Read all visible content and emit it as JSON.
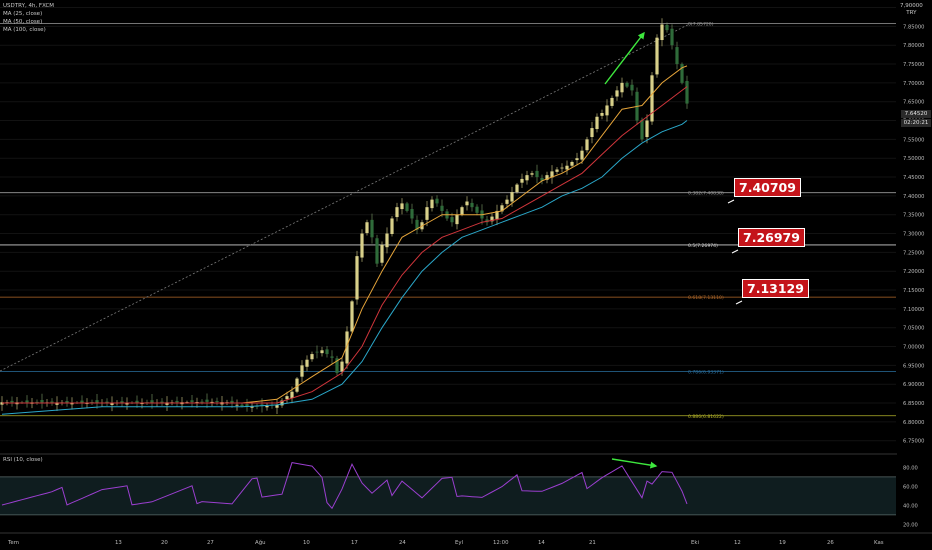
{
  "legend": {
    "symbol": "USDTRY, 4h, FXCM",
    "ma1": "MA (25, close)",
    "ma2": "MA (50, close)",
    "ma3": "MA (100, close)"
  },
  "rsi_legend": "RSI (10, close)",
  "currency_top": "7,90000",
  "currency_unit": "TRY",
  "last_price": "7.64520",
  "countdown": "02:20:21",
  "callouts": [
    "7.40709",
    "7.26979",
    "7.13129"
  ],
  "colors": {
    "up": "#d8d08a",
    "down": "#2f6b3a",
    "ma25": "#e6a53a",
    "ma50": "#d0353b",
    "ma100": "#2aa7c9",
    "rsi": "#9b3fd0",
    "arrow": "#3ee83e",
    "callout": "#c4141a"
  },
  "chart_data": {
    "type": "candlestick",
    "symbol": "USDTRY",
    "timeframe": "4h",
    "source": "FXCM",
    "ylim": [
      6.72,
      7.92
    ],
    "y_ticks": [
      "7.90000",
      "7.85000",
      "7.80000",
      "7.75000",
      "7.70000",
      "7.65000",
      "7.60000",
      "7.55000",
      "7.50000",
      "7.45000",
      "7.40000",
      "7.35000",
      "7.30000",
      "7.25000",
      "7.20000",
      "7.15000",
      "7.10000",
      "7.05000",
      "7.00000",
      "6.95000",
      "6.90000",
      "6.85000",
      "6.80000",
      "6.75000"
    ],
    "x_ticks": [
      "Tem",
      "13",
      "20",
      "27",
      "Ağu",
      "10",
      "17",
      "24",
      "Eyl",
      "12:00",
      "14",
      "21",
      "Eki",
      "12",
      "19",
      "26",
      "Kas"
    ],
    "close_path": [
      [
        0,
        6.852
      ],
      [
        28,
        6.851
      ],
      [
        42,
        6.853
      ],
      [
        45,
        6.852
      ],
      [
        48,
        6.842
      ],
      [
        51,
        6.84
      ],
      [
        55,
        6.845
      ],
      [
        58,
        6.88
      ],
      [
        60,
        6.95
      ],
      [
        62,
        6.98
      ],
      [
        64,
        6.99
      ],
      [
        66,
        6.97
      ],
      [
        67,
        6.93
      ],
      [
        68,
        6.96
      ],
      [
        69,
        7.04
      ],
      [
        70,
        7.12
      ],
      [
        71,
        7.24
      ],
      [
        72,
        7.3
      ],
      [
        73,
        7.33
      ],
      [
        74,
        7.29
      ],
      [
        75,
        7.22
      ],
      [
        76,
        7.27
      ],
      [
        77,
        7.3
      ],
      [
        78,
        7.34
      ],
      [
        79,
        7.37
      ],
      [
        80,
        7.38
      ],
      [
        81,
        7.36
      ],
      [
        82,
        7.34
      ],
      [
        83,
        7.31
      ],
      [
        84,
        7.33
      ],
      [
        85,
        7.37
      ],
      [
        86,
        7.39
      ],
      [
        87,
        7.38
      ],
      [
        88,
        7.36
      ],
      [
        89,
        7.34
      ],
      [
        90,
        7.33
      ],
      [
        91,
        7.35
      ],
      [
        92,
        7.37
      ],
      [
        93,
        7.385
      ],
      [
        94,
        7.37
      ],
      [
        95,
        7.355
      ],
      [
        96,
        7.34
      ],
      [
        97,
        7.33
      ],
      [
        98,
        7.345
      ],
      [
        99,
        7.36
      ],
      [
        100,
        7.375
      ],
      [
        101,
        7.39
      ],
      [
        102,
        7.41
      ],
      [
        103,
        7.43
      ],
      [
        104,
        7.445
      ],
      [
        105,
        7.455
      ],
      [
        106,
        7.46
      ],
      [
        107,
        7.45
      ],
      [
        108,
        7.44
      ],
      [
        109,
        7.455
      ],
      [
        110,
        7.465
      ],
      [
        111,
        7.47
      ],
      [
        112,
        7.475
      ],
      [
        113,
        7.48
      ],
      [
        114,
        7.49
      ],
      [
        115,
        7.5
      ],
      [
        116,
        7.52
      ],
      [
        117,
        7.55
      ],
      [
        118,
        7.58
      ],
      [
        119,
        7.61
      ],
      [
        120,
        7.62
      ],
      [
        121,
        7.64
      ],
      [
        122,
        7.66
      ],
      [
        123,
        7.68
      ],
      [
        124,
        7.7
      ],
      [
        125,
        7.69
      ],
      [
        126,
        7.68
      ],
      [
        127,
        7.6
      ],
      [
        128,
        7.55
      ],
      [
        129,
        7.6
      ],
      [
        130,
        7.72
      ],
      [
        131,
        7.82
      ],
      [
        132,
        7.855
      ],
      [
        133,
        7.84
      ],
      [
        134,
        7.8
      ],
      [
        135,
        7.75
      ],
      [
        136,
        7.7
      ],
      [
        137,
        7.645
      ]
    ],
    "moving_averages": [
      {
        "name": "MA (25, close)",
        "values": [
          [
            0,
            6.85
          ],
          [
            48,
            6.85
          ],
          [
            55,
            6.86
          ],
          [
            62,
            6.92
          ],
          [
            68,
            6.97
          ],
          [
            72,
            7.1
          ],
          [
            76,
            7.2
          ],
          [
            80,
            7.29
          ],
          [
            84,
            7.32
          ],
          [
            88,
            7.35
          ],
          [
            92,
            7.35
          ],
          [
            96,
            7.35
          ],
          [
            100,
            7.36
          ],
          [
            104,
            7.4
          ],
          [
            108,
            7.44
          ],
          [
            112,
            7.46
          ],
          [
            116,
            7.49
          ],
          [
            120,
            7.56
          ],
          [
            124,
            7.63
          ],
          [
            128,
            7.64
          ],
          [
            132,
            7.7
          ],
          [
            136,
            7.74
          ],
          [
            137,
            7.745
          ]
        ]
      },
      {
        "name": "MA (50, close)",
        "values": [
          [
            0,
            6.85
          ],
          [
            48,
            6.85
          ],
          [
            55,
            6.85
          ],
          [
            62,
            6.88
          ],
          [
            68,
            6.93
          ],
          [
            72,
            7.0
          ],
          [
            76,
            7.11
          ],
          [
            80,
            7.19
          ],
          [
            84,
            7.25
          ],
          [
            88,
            7.29
          ],
          [
            92,
            7.31
          ],
          [
            96,
            7.33
          ],
          [
            100,
            7.34
          ],
          [
            104,
            7.37
          ],
          [
            108,
            7.4
          ],
          [
            112,
            7.43
          ],
          [
            116,
            7.46
          ],
          [
            120,
            7.51
          ],
          [
            124,
            7.56
          ],
          [
            128,
            7.6
          ],
          [
            132,
            7.64
          ],
          [
            136,
            7.68
          ],
          [
            137,
            7.69
          ]
        ]
      },
      {
        "name": "MA (100, close)",
        "values": [
          [
            0,
            6.82
          ],
          [
            20,
            6.84
          ],
          [
            48,
            6.84
          ],
          [
            55,
            6.845
          ],
          [
            62,
            6.86
          ],
          [
            68,
            6.9
          ],
          [
            72,
            6.96
          ],
          [
            76,
            7.05
          ],
          [
            80,
            7.13
          ],
          [
            84,
            7.2
          ],
          [
            88,
            7.25
          ],
          [
            92,
            7.29
          ],
          [
            96,
            7.31
          ],
          [
            100,
            7.33
          ],
          [
            104,
            7.35
          ],
          [
            108,
            7.37
          ],
          [
            112,
            7.4
          ],
          [
            116,
            7.42
          ],
          [
            120,
            7.45
          ],
          [
            124,
            7.5
          ],
          [
            128,
            7.54
          ],
          [
            132,
            7.57
          ],
          [
            136,
            7.59
          ],
          [
            137,
            7.6
          ]
        ]
      }
    ],
    "fib_levels": [
      {
        "label": "0(7.85720)",
        "value": 7.8572,
        "color": "#9a9a9a"
      },
      {
        "label": "0.382(7.40838)",
        "value": 7.40838,
        "color": "#9a9a9a"
      },
      {
        "label": "0.5(7.26974)",
        "value": 7.26974,
        "color": "#cfcfcf"
      },
      {
        "label": "0.618(7.13110)",
        "value": 7.1311,
        "color": "#b36a2a"
      },
      {
        "label": "0.786(6.93371)",
        "value": 6.93371,
        "color": "#2a6f9e"
      },
      {
        "label": "0.886(6.81622)",
        "value": 6.81622,
        "color": "#b4b42a"
      }
    ],
    "rsi": {
      "name": "RSI (10, close)",
      "ylim": [
        12,
        92
      ],
      "levels": [
        70,
        30
      ],
      "y_ticks": [
        "80.00",
        "60.00",
        "40.00",
        "20.00"
      ],
      "values": [
        [
          0,
          50
        ],
        [
          10,
          48
        ],
        [
          20,
          55
        ],
        [
          30,
          47
        ],
        [
          40,
          52
        ],
        [
          46,
          40
        ],
        [
          50,
          60
        ],
        [
          56,
          55
        ],
        [
          58,
          85
        ],
        [
          62,
          75
        ],
        [
          66,
          45
        ],
        [
          68,
          62
        ],
        [
          70,
          85
        ],
        [
          72,
          62
        ],
        [
          74,
          48
        ],
        [
          78,
          60
        ],
        [
          80,
          72
        ],
        [
          84,
          48
        ],
        [
          88,
          62
        ],
        [
          92,
          58
        ],
        [
          96,
          50
        ],
        [
          100,
          55
        ],
        [
          104,
          65
        ],
        [
          108,
          58
        ],
        [
          112,
          60
        ],
        [
          116,
          65
        ],
        [
          120,
          74
        ],
        [
          124,
          80
        ],
        [
          128,
          40
        ],
        [
          130,
          72
        ],
        [
          132,
          82
        ],
        [
          134,
          78
        ],
        [
          136,
          55
        ],
        [
          137,
          40
        ]
      ]
    }
  }
}
